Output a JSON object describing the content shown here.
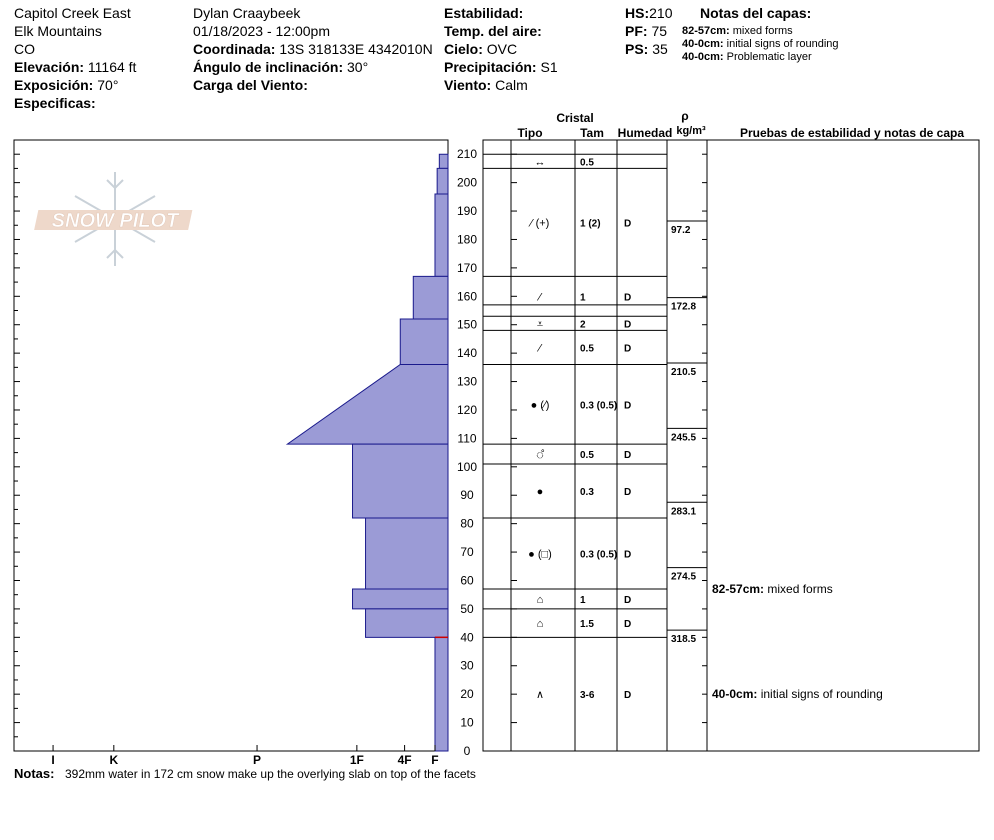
{
  "header": {
    "location": "Capitol Creek East",
    "range": "Elk Mountains",
    "state": "CO",
    "elevation_label": "Elevación:",
    "elevation_value": "11164 ft",
    "aspect_label": "Exposición:",
    "aspect_value": "70°",
    "specifics_label": "Especificas:",
    "observer": "Dylan Craaybeek",
    "datetime": "01/18/2023 - 12:00pm",
    "coord_label": "Coordinada:",
    "coord_value": "13S 318133E 4342010N",
    "slope_label": "Ángulo de inclinación:",
    "slope_value": "30°",
    "wind_load_label": "Carga del Viento:",
    "stability_label": "Estabilidad:",
    "air_temp_label": "Temp. del aire:",
    "sky_label": "Cielo:",
    "sky_value": "OVC",
    "precip_label": "Precipitación:",
    "precip_value": "S1",
    "wind_label": "Viento:",
    "wind_value": "Calm",
    "hs_label": "HS:",
    "hs_value": "210",
    "pf_label": "PF:",
    "pf_value": "75",
    "ps_label": "PS:",
    "ps_value": "35",
    "layer_notes_title": "Notas del capas:",
    "layer_notes": [
      {
        "range": "82-57cm:",
        "text": "mixed forms"
      },
      {
        "range": "40-0cm:",
        "text": "initial signs of rounding"
      },
      {
        "range": "40-0cm:",
        "text": "Problematic layer"
      }
    ]
  },
  "logo_text": "SNOW PILOT",
  "columns": {
    "crystal": "Cristal",
    "type": "Tipo",
    "size": "Tam",
    "moisture": "Humedad",
    "rho": "ρ",
    "density_unit": "kg/m³",
    "tests": "Pruebas de estabilidad y notas de capa"
  },
  "notes_label": "Notas:",
  "notes_text": "392mm water in 172 cm snow make up the overlying slab on top of the facets",
  "test_notes": [
    {
      "depth": 57,
      "range": "82-57cm:",
      "text": "mixed forms"
    },
    {
      "depth": 20,
      "range": "40-0cm:",
      "text": "initial signs of rounding"
    }
  ],
  "chart_data": {
    "type": "snow_profile",
    "y_axis": {
      "min": 0,
      "max": 215,
      "ticks": [
        0,
        10,
        20,
        30,
        40,
        50,
        60,
        70,
        80,
        90,
        100,
        110,
        120,
        130,
        140,
        150,
        160,
        170,
        180,
        190,
        200,
        210
      ]
    },
    "hardness_scale": [
      "I",
      "K",
      "P",
      "1F",
      "4F",
      "F"
    ],
    "hardness_positions": {
      "I": 0.91,
      "K": 0.77,
      "P": 0.44,
      "1F": 0.21,
      "4F": 0.1,
      "F": 0.03
    },
    "profile": [
      {
        "top": 210,
        "bottom": 205,
        "hardness": 0.02
      },
      {
        "top": 205,
        "bottom": 196,
        "hardness": 0.025
      },
      {
        "top": 196,
        "bottom": 167,
        "hardness": 0.03
      },
      {
        "top": 167,
        "bottom": 152,
        "hardness": 0.08
      },
      {
        "top": 152,
        "bottom": 136,
        "hardness": 0.11
      },
      {
        "top": 136,
        "bottom": 136,
        "hardness": 0.37
      },
      {
        "top": 136,
        "bottom": 108,
        "hardness": 0.37,
        "hardness_bottom": 0.37,
        "sloped_top": true
      },
      {
        "top": 108,
        "bottom": 82,
        "hardness": 0.22
      },
      {
        "top": 82,
        "bottom": 57,
        "hardness": 0.19
      },
      {
        "top": 57,
        "bottom": 50,
        "hardness": 0.22
      },
      {
        "top": 50,
        "bottom": 40,
        "hardness": 0.19
      },
      {
        "top": 40,
        "bottom": 0,
        "hardness": 0.03
      }
    ],
    "layer_lines": [
      210,
      205,
      167,
      157,
      153,
      148,
      136,
      108,
      101,
      82,
      57,
      50,
      40
    ],
    "layers": [
      {
        "top": 210,
        "bottom": 205,
        "type": "↔",
        "size": "0.5",
        "moisture": ""
      },
      {
        "top": 205,
        "bottom": 167,
        "type": "⁄ (+)",
        "size": "1 (2)",
        "moisture": "D"
      },
      {
        "top": 167,
        "bottom": 153,
        "type": "⁄",
        "size": "1",
        "moisture": "D"
      },
      {
        "top": 153,
        "bottom": 148,
        "type": "⩡",
        "size": "2",
        "moisture": "D"
      },
      {
        "top": 148,
        "bottom": 136,
        "type": "⁄",
        "size": "0.5",
        "moisture": "D"
      },
      {
        "top": 136,
        "bottom": 108,
        "type": "● (⁄)",
        "size": "0.3 (0.5)",
        "moisture": "D"
      },
      {
        "top": 108,
        "bottom": 101,
        "type": "ஂ",
        "size": "0.5",
        "moisture": "D"
      },
      {
        "top": 101,
        "bottom": 82,
        "type": "●",
        "size": "0.3",
        "moisture": "D"
      },
      {
        "top": 82,
        "bottom": 57,
        "type": "● (□)",
        "size": "0.3 (0.5)",
        "moisture": "D"
      },
      {
        "top": 57,
        "bottom": 50,
        "type": "⌂",
        "size": "1",
        "moisture": "D"
      },
      {
        "top": 50,
        "bottom": 40,
        "type": "⌂",
        "size": "1.5",
        "moisture": "D"
      },
      {
        "top": 40,
        "bottom": 0,
        "type": "∧",
        "size": "3-6",
        "moisture": "D"
      }
    ],
    "densities": [
      {
        "depth": 183,
        "value": "97.2"
      },
      {
        "depth": 156,
        "value": "172.8"
      },
      {
        "depth": 133,
        "value": "210.5"
      },
      {
        "depth": 110,
        "value": "245.5"
      },
      {
        "depth": 84,
        "value": "283.1"
      },
      {
        "depth": 61,
        "value": "274.5"
      },
      {
        "depth": 39,
        "value": "318.5"
      }
    ]
  }
}
